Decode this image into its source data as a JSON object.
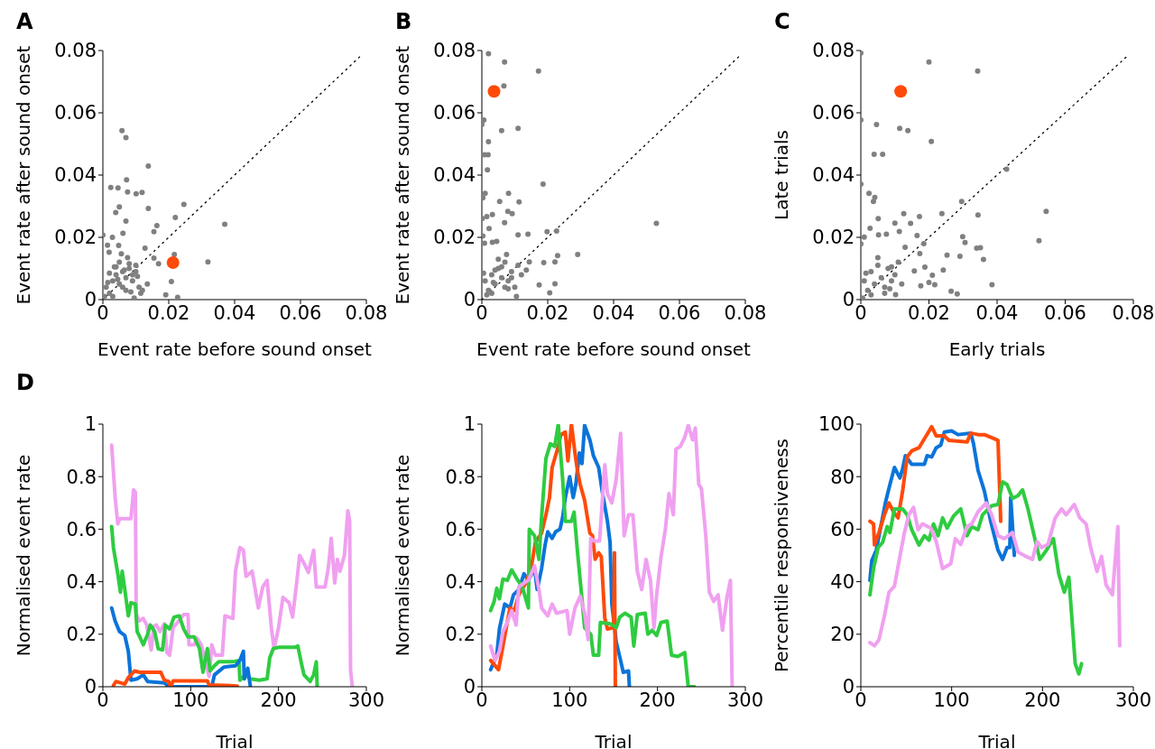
{
  "chart_data": [
    {
      "type": "scatter",
      "title": "A",
      "xlabel": "Event rate before sound onset",
      "ylabel": "Event rate after sound onset",
      "xlim": [
        0,
        0.08
      ],
      "ylim": [
        0,
        0.08
      ],
      "xticks": [
        0,
        0.02,
        0.04,
        0.06,
        0.08
      ],
      "yticks": [
        0,
        0.02,
        0.04,
        0.06,
        0.08
      ],
      "series": [
        {
          "color": "#808080",
          "x": [
            0.0058,
            0.007,
            0.0138,
            0.0072,
            0.0024,
            0.0046,
            0.0075,
            0.0101,
            0.0119,
            0.005,
            0.0039,
            0.0138,
            0.0246,
            0.007,
            0.022,
            0.037,
            0.0164,
            0.0155,
            0.0061,
            0,
            0.0029,
            0.0014,
            0.0048,
            0.0128,
            0.0019,
            0.0056,
            0.0217,
            0.0319,
            0.0155,
            0.0169,
            0.0208,
            0.0227,
            0.0191,
            0.001,
            0.002,
            0.003,
            0.004,
            0.005,
            0.006,
            0.007,
            0.008,
            0.009,
            0.01,
            0.011,
            0.012,
            0.003,
            0.005,
            0.007,
            0.009,
            0.004,
            0.006,
            0.008,
            0.01,
            0.002,
            0.0045,
            0.0065,
            0.0085,
            0.0005,
            0.0015,
            0.0105,
            0.0135,
            0.0115,
            0.0035,
            0.0075,
            0.0095
          ],
          "values": [
            0.0543,
            0.052,
            0.0429,
            0.0385,
            0.036,
            0.0359,
            0.0346,
            0.034,
            0.0344,
            0.0298,
            0.028,
            0.0293,
            0.0306,
            0.0252,
            0.0264,
            0.0242,
            0.0238,
            0.0218,
            0.0213,
            0.0207,
            0.02,
            0.0175,
            0.0174,
            0.0165,
            0.0152,
            0.0147,
            0.0145,
            0.0121,
            0.0133,
            0.0115,
            0.0058,
            0.0007,
            0.0015,
            0.004,
            0.002,
            0.006,
            0.008,
            0.005,
            0.009,
            0.007,
            0.01,
            0.006,
            0.011,
            0.004,
            0.003,
            0.001,
            0.012,
            0.003,
            0.008,
            0.0105,
            0.004,
            0.0115,
            0.009,
            0.0085,
            0.0065,
            0.0095,
            0.0025,
            0.001,
            0.0055,
            0.0075,
            0.005,
            0.002,
            0.0105,
            0.0135,
            0.0005
          ]
        },
        {
          "color": "#ff4a0a",
          "x": [
            0.0213
          ],
          "values": [
            0.0119
          ]
        },
        {
          "type": "line",
          "color": "#000000",
          "line_style": "dotted",
          "x": [
            0,
            0.078
          ],
          "values": [
            0,
            0.078
          ]
        }
      ]
    },
    {
      "type": "scatter",
      "title": "B",
      "xlabel": "Event rate before sound onset",
      "ylabel": "Event rate after sound onset",
      "xlim": [
        0,
        0.08
      ],
      "ylim": [
        0,
        0.08
      ],
      "xticks": [
        0,
        0.02,
        0.04,
        0.06,
        0.08
      ],
      "yticks": [
        0,
        0.02,
        0.04,
        0.06,
        0.08
      ],
      "series": [
        {
          "color": "#808080",
          "x": [
            0.002,
            0.0069,
            0.0172,
            0.0067,
            0.0006,
            0,
            0.006,
            0.011,
            0.002,
            0.0008,
            0.0019,
            0.0017,
            0.0186,
            0.001,
            0.0081,
            0.0003,
            0.0054,
            0.0113,
            0.0032,
            0.0079,
            0.0092,
            0.0015,
            0.0001,
            0.0069,
            0.0022,
            0.053,
            0.0198,
            0.0227,
            0.014,
            0.011,
            0.0003,
            0.0008,
            0.0032,
            0.0045,
            0.0291,
            0.023,
            0.0222,
            0.0188,
            0.0144,
            0.0174,
            0.0222,
            0.0206,
            0.0105,
            0.001,
            0.002,
            0.003,
            0.004,
            0.005,
            0.006,
            0.007,
            0.008,
            0.009,
            0.01,
            0.011,
            0.012,
            0.003,
            0.005,
            0.007,
            0.009,
            0.004,
            0.006,
            0.008,
            0.0005,
            0.0015,
            0.0135,
            0.0035,
            0.0075
          ],
          "values": [
            0.079,
            0.0763,
            0.0734,
            0.0686,
            0.0577,
            0.0562,
            0.0543,
            0.055,
            0.0507,
            0.0465,
            0.0465,
            0.0417,
            0.0371,
            0.0341,
            0.0341,
            0.0327,
            0.0315,
            0.0314,
            0.0273,
            0.0283,
            0.0276,
            0.0267,
            0.026,
            0.0247,
            0.0228,
            0.0245,
            0.0218,
            0.022,
            0.021,
            0.0208,
            0.0204,
            0.0181,
            0.0184,
            0.0187,
            0.0145,
            0.0141,
            0.0121,
            0.0119,
            0.0121,
            0.0047,
            0.0051,
            0.0022,
            0.001,
            0.006,
            0.003,
            0.008,
            0.005,
            0.01,
            0.007,
            0.012,
            0.006,
            0.009,
            0.004,
            0.011,
            0.008,
            0.002,
            0.013,
            0.004,
            0.007,
            0.0095,
            0.0105,
            0.0035,
            0.0085,
            0.0015,
            0.0095,
            0.0055,
            0.0145
          ]
        },
        {
          "color": "#ff4a0a",
          "x": [
            0.0037
          ],
          "values": [
            0.0669
          ]
        },
        {
          "type": "line",
          "color": "#000000",
          "line_style": "dotted",
          "x": [
            0,
            0.078
          ],
          "values": [
            0,
            0.078
          ]
        }
      ]
    },
    {
      "type": "scatter",
      "title": "C",
      "xlabel": "Early trials",
      "ylabel": "Late trials",
      "xlim": [
        0,
        0.08
      ],
      "ylim": [
        0,
        0.08
      ],
      "xticks": [
        0,
        0.02,
        0.04,
        0.06,
        0.08
      ],
      "yticks": [
        0,
        0.02,
        0.04,
        0.06,
        0.08
      ],
      "series": [
        {
          "color": "#808080",
          "x": [
            0,
            0.02,
            0.0343,
            0,
            0.0046,
            0.0114,
            0.0138,
            0.0207,
            0.0039,
            0.0064,
            0.0428,
            0,
            0.0024,
            0.0041,
            0.0037,
            0.0296,
            0.0544,
            0.0126,
            0.0238,
            0.0344,
            0.0172,
            0.0051,
            0.01,
            0.0146,
            0.0027,
            0.0113,
            0.0075,
            0.0052,
            0.0165,
            0.0299,
            0.001,
            0.0523,
            0.0306,
            0.0185,
            0,
            0.013,
            0.034,
            0.0351,
            0.0253,
            0.0291,
            0.036,
            0.0173,
            0.0188,
            0.0242,
            0.0157,
            0.021,
            0.02,
            0.0217,
            0.0176,
            0.0385,
            0.0265,
            0.0283,
            0.0102,
            0.001,
            0.002,
            0.003,
            0.004,
            0.005,
            0.006,
            0.007,
            0.008,
            0.009,
            0.01,
            0.011,
            0.012,
            0.003,
            0.005,
            0.007,
            0.009,
            0.0005,
            0.0015,
            0.0085
          ],
          "values": [
            0.0792,
            0.0763,
            0.0734,
            0.0577,
            0.0562,
            0.055,
            0.0543,
            0.0508,
            0.0467,
            0.0467,
            0.0419,
            0.0371,
            0.0341,
            0.0328,
            0.0315,
            0.0315,
            0.0283,
            0.0276,
            0.0276,
            0.0272,
            0.0267,
            0.026,
            0.0246,
            0.0245,
            0.0229,
            0.0219,
            0.021,
            0.0208,
            0.0206,
            0.0202,
            0.0201,
            0.0189,
            0.0183,
            0.018,
            0.0179,
            0.0168,
            0.0165,
            0.0167,
            0.0143,
            0.0139,
            0.0129,
            0.0148,
            0.0104,
            0.0095,
            0.0092,
            0.0078,
            0.0055,
            0.0048,
            0.0044,
            0.0048,
            0.0027,
            0.0018,
            0.0016,
            0.006,
            0.003,
            0.009,
            0.005,
            0.011,
            0.007,
            0.004,
            0.01,
            0.006,
            0.008,
            0.012,
            0.005,
            0.0015,
            0.0135,
            0.002,
            0.0105,
            0.0005,
            0.0085,
            0.0035
          ]
        },
        {
          "color": "#ff4a0a",
          "x": [
            0.0117
          ],
          "values": [
            0.0669
          ]
        },
        {
          "type": "line",
          "color": "#000000",
          "line_style": "dotted",
          "x": [
            0,
            0.078
          ],
          "values": [
            0,
            0.078
          ]
        }
      ]
    },
    {
      "type": "line",
      "title": "D",
      "xlabel": "Trial",
      "ylabel": "Normalised event rate",
      "xlim": [
        0,
        300
      ],
      "ylim": [
        0,
        1
      ],
      "xticks": [
        0,
        100,
        200,
        300
      ],
      "yticks": [
        0,
        0.2,
        0.4,
        0.6,
        0.8,
        1
      ],
      "series": [
        {
          "color": "#f0a0f0",
          "x": [
            10,
            14,
            17,
            19,
            32,
            35,
            37,
            38,
            41,
            46,
            50,
            55,
            58,
            61,
            65,
            70,
            73,
            76,
            80,
            85,
            92,
            97,
            98,
            104,
            107,
            112,
            117,
            121,
            124,
            128,
            131,
            136,
            139,
            148,
            151,
            156,
            160,
            163,
            170,
            177,
            182,
            187,
            192,
            195,
            200,
            205,
            212,
            216,
            221,
            224,
            229,
            234,
            240,
            243,
            253,
            257,
            260,
            264,
            267,
            270,
            275,
            279,
            281,
            282,
            284
          ],
          "values": [
            0.92,
            0.72,
            0.62,
            0.64,
            0.64,
            0.75,
            0.74,
            0.28,
            0.25,
            0.26,
            0.235,
            0.14,
            0.23,
            0.235,
            0.21,
            0.24,
            0.13,
            0.12,
            0.225,
            0.245,
            0.275,
            0.275,
            0.16,
            0.16,
            0.185,
            0.16,
            0.09,
            0.04,
            0.16,
            0.12,
            0.12,
            0.12,
            0.27,
            0.26,
            0.44,
            0.53,
            0.52,
            0.42,
            0.44,
            0.3,
            0.38,
            0.405,
            0.22,
            0.145,
            0.225,
            0.34,
            0.32,
            0.265,
            0.405,
            0.5,
            0.47,
            0.435,
            0.52,
            0.38,
            0.38,
            0.46,
            0.565,
            0.395,
            0.485,
            0.44,
            0.5,
            0.67,
            0.63,
            0.065,
            0
          ]
        },
        {
          "color": "#2ecc40",
          "x": [
            10,
            12,
            17,
            20,
            22,
            25,
            29,
            32,
            37,
            39,
            42,
            46,
            51,
            54,
            59,
            63,
            68,
            71,
            76,
            81,
            87,
            92,
            97,
            104,
            110,
            114,
            119,
            122,
            127,
            132,
            148,
            155,
            156,
            162,
            168,
            178,
            187,
            190,
            194,
            200,
            219,
            222,
            226,
            229,
            236,
            240,
            243,
            244
          ],
          "values": [
            0.61,
            0.53,
            0.43,
            0.36,
            0.44,
            0.37,
            0.27,
            0.32,
            0.315,
            0.21,
            0.19,
            0.16,
            0.2,
            0.235,
            0.21,
            0.145,
            0.14,
            0.235,
            0.22,
            0.265,
            0.27,
            0.22,
            0.19,
            0.19,
            0.145,
            0.055,
            0.145,
            0.06,
            0.08,
            0.095,
            0.095,
            0.1,
            0.025,
            0.045,
            0.03,
            0.025,
            0.03,
            0.11,
            0.145,
            0.15,
            0.15,
            0.155,
            0.09,
            0.045,
            0.02,
            0.045,
            0.095,
            0
          ]
        },
        {
          "color": "#0a74da",
          "x": [
            10,
            14,
            19,
            25,
            29,
            32,
            39,
            46,
            51,
            70,
            75,
            124,
            127,
            138,
            151,
            156,
            160,
            161,
            165,
            168
          ],
          "values": [
            0.3,
            0.25,
            0.21,
            0.195,
            0.135,
            0.025,
            0.03,
            0.045,
            0.02,
            0.015,
            0,
            0,
            0.045,
            0.075,
            0.08,
            0.1,
            0.135,
            0.03,
            0.07,
            0
          ]
        },
        {
          "color": "#ff4a0a",
          "x": [
            12,
            15,
            25,
            29,
            36,
            42,
            49,
            66,
            70,
            75,
            77,
            80,
            119,
            121,
            153
          ],
          "values": [
            0.005,
            0.02,
            0.01,
            0.035,
            0.06,
            0.055,
            0.055,
            0.055,
            0.025,
            0.02,
            0,
            0.022,
            0.022,
            0.007,
            0.003
          ]
        }
      ]
    },
    {
      "type": "line",
      "xlabel": "Trial",
      "ylabel": "Normalised event rate",
      "xlim": [
        0,
        300
      ],
      "ylim": [
        0,
        1
      ],
      "xticks": [
        0,
        100,
        200,
        300
      ],
      "yticks": [
        0,
        0.2,
        0.4,
        0.6,
        0.8,
        1
      ],
      "series": [
        {
          "color": "#0a74da",
          "x": [
            10,
            17,
            20,
            26,
            32,
            36,
            42,
            48,
            53,
            60,
            63,
            68,
            72,
            75,
            80,
            84,
            89,
            92,
            95,
            100,
            104,
            107,
            111,
            114,
            117,
            123,
            127,
            133,
            137,
            143,
            146,
            148,
            153,
            158,
            161,
            167,
            168
          ],
          "values": [
            0.065,
            0.12,
            0.22,
            0.315,
            0.3,
            0.35,
            0.37,
            0.43,
            0.405,
            0.45,
            0.37,
            0.45,
            0.54,
            0.59,
            0.565,
            0.59,
            0.6,
            0.645,
            0.72,
            0.8,
            0.72,
            0.77,
            0.89,
            0.85,
            0.995,
            0.94,
            0.88,
            0.835,
            0.745,
            0.63,
            0.55,
            0.315,
            0.17,
            0.1,
            0.055,
            0.06,
            0
          ]
        },
        {
          "color": "#ff4a0a",
          "x": [
            10,
            19,
            23,
            27,
            32,
            37,
            42,
            50,
            56,
            61,
            68,
            73,
            77,
            80,
            87,
            90,
            95,
            98,
            102,
            106,
            109,
            112,
            117,
            123,
            126,
            129,
            133,
            136,
            140,
            143,
            150,
            151,
            152
          ],
          "values": [
            0.1,
            0.065,
            0.135,
            0.21,
            0.3,
            0.29,
            0.35,
            0.395,
            0.45,
            0.55,
            0.585,
            0.655,
            0.72,
            0.835,
            0.915,
            0.96,
            0.97,
            0.86,
            1,
            0.89,
            0.82,
            0.77,
            0.71,
            0.585,
            0.575,
            0.485,
            0.51,
            0.495,
            0.26,
            0.22,
            0.225,
            0.51,
            0
          ]
        },
        {
          "color": "#2ecc40",
          "x": [
            10,
            14,
            17,
            20,
            24,
            29,
            34,
            41,
            46,
            53,
            54,
            60,
            65,
            68,
            73,
            78,
            83,
            87,
            92,
            95,
            102,
            105,
            109,
            114,
            117,
            124,
            127,
            133,
            135,
            146,
            153,
            157,
            163,
            170,
            173,
            177,
            186,
            189,
            194,
            199,
            204,
            211,
            216,
            223,
            231,
            235,
            242
          ],
          "values": [
            0.29,
            0.325,
            0.375,
            0.335,
            0.41,
            0.405,
            0.445,
            0.405,
            0.38,
            0.3,
            0.6,
            0.575,
            0.485,
            0.645,
            0.87,
            0.925,
            0.915,
            1,
            0.79,
            0.63,
            0.63,
            0.665,
            0.51,
            0.335,
            0.225,
            0.2,
            0.12,
            0.12,
            0.245,
            0.24,
            0.225,
            0.265,
            0.28,
            0.265,
            0.155,
            0.275,
            0.28,
            0.2,
            0.215,
            0.195,
            0.245,
            0.25,
            0.12,
            0.115,
            0.13,
            0,
            0
          ]
        },
        {
          "color": "#f0a0f0",
          "x": [
            10,
            15,
            20,
            24,
            29,
            34,
            39,
            42,
            48,
            53,
            60,
            65,
            68,
            75,
            80,
            85,
            97,
            100,
            106,
            112,
            117,
            121,
            124,
            128,
            134,
            140,
            143,
            148,
            153,
            158,
            162,
            167,
            172,
            177,
            182,
            187,
            192,
            196,
            199,
            204,
            209,
            213,
            218,
            221,
            226,
            231,
            235,
            240,
            243,
            247,
            250,
            255,
            259,
            264,
            269,
            274,
            279,
            283,
            285
          ],
          "values": [
            0.155,
            0.1,
            0.135,
            0.21,
            0.245,
            0.29,
            0.235,
            0.38,
            0.395,
            0.405,
            0.46,
            0.37,
            0.3,
            0.27,
            0.315,
            0.28,
            0.29,
            0.2,
            0.3,
            0.345,
            0.28,
            0.18,
            0.565,
            0.555,
            0.555,
            0.845,
            0.735,
            0.7,
            0.79,
            0.965,
            0.575,
            0.655,
            0.655,
            0.44,
            0.37,
            0.485,
            0.405,
            0.225,
            0.35,
            0.495,
            0.6,
            0.735,
            0.655,
            0.905,
            0.915,
            0.95,
            0.995,
            0.94,
            0.985,
            0.77,
            0.755,
            0.575,
            0.36,
            0.325,
            0.35,
            0.215,
            0.34,
            0.405,
            0
          ]
        }
      ]
    },
    {
      "type": "line",
      "xlabel": "Trial",
      "ylabel": "Percentile responsiveness",
      "xlim": [
        0,
        300
      ],
      "ylim": [
        0,
        100
      ],
      "xticks": [
        0,
        100,
        200,
        300
      ],
      "yticks": [
        0,
        20,
        40,
        60,
        80,
        100
      ],
      "series": [
        {
          "color": "#0a74da",
          "x": [
            10,
            12,
            17,
            22,
            27,
            32,
            37,
            43,
            46,
            49,
            56,
            70,
            73,
            78,
            83,
            88,
            92,
            100,
            107,
            121,
            124,
            129,
            136,
            143,
            151,
            156,
            161,
            164,
            165,
            169
          ],
          "values": [
            40.5,
            48,
            52,
            61,
            70,
            77,
            83.5,
            79.5,
            83,
            88,
            84.7,
            84.7,
            88,
            87.5,
            91,
            92,
            97,
            97.4,
            96,
            96.6,
            92.6,
            82.4,
            74.5,
            63,
            52,
            48.5,
            53,
            53,
            72,
            50
          ]
        },
        {
          "color": "#ff4a0a",
          "x": [
            10,
            14,
            15,
            20,
            26,
            31,
            36,
            41,
            46,
            51,
            56,
            64,
            71,
            78,
            83,
            92,
            97,
            117,
            121,
            129,
            136,
            148,
            151,
            154
          ],
          "values": [
            63,
            62,
            54,
            58.7,
            65.5,
            70,
            66.6,
            64.3,
            74.5,
            87.5,
            89.8,
            91,
            95,
            99,
            95.5,
            95.5,
            93.8,
            93.2,
            96.6,
            96,
            96,
            94.3,
            93.8,
            63
          ]
        },
        {
          "color": "#2ecc40",
          "x": [
            10,
            14,
            19,
            24,
            29,
            32,
            37,
            46,
            51,
            56,
            64,
            70,
            75,
            80,
            85,
            90,
            95,
            102,
            110,
            117,
            122,
            129,
            134,
            144,
            151,
            156,
            161,
            167,
            173,
            178,
            184,
            190,
            197,
            204,
            212,
            218,
            224,
            229,
            236,
            240,
            243
          ],
          "values": [
            35,
            45,
            53,
            55,
            61,
            58.7,
            67.7,
            67.7,
            65.5,
            59.8,
            54,
            57.5,
            55.8,
            62,
            57.5,
            64.3,
            60.4,
            65,
            67.7,
            57.5,
            61,
            59.8,
            65.5,
            68.9,
            69.4,
            78,
            77,
            71.7,
            72.8,
            75,
            67.7,
            58.7,
            48.5,
            51.8,
            56.4,
            42.8,
            36,
            41.7,
            8.8,
            4.9,
            8.8
          ]
        },
        {
          "color": "#f0a0f0",
          "x": [
            10,
            15,
            20,
            26,
            31,
            37,
            43,
            48,
            53,
            58,
            63,
            68,
            77,
            83,
            90,
            99,
            104,
            110,
            117,
            122,
            129,
            138,
            144,
            151,
            158,
            167,
            173,
            182,
            189,
            194,
            199,
            206,
            214,
            221,
            226,
            235,
            241,
            248,
            253,
            260,
            265,
            270,
            277,
            283,
            285
          ],
          "values": [
            16.8,
            15.6,
            17.9,
            27,
            36,
            38.3,
            49.6,
            58.7,
            65.5,
            68.3,
            59.8,
            62,
            60.4,
            55.3,
            45,
            46.8,
            56.4,
            54.2,
            61,
            62,
            66.6,
            70,
            65.5,
            57.5,
            56.4,
            58.7,
            51.3,
            49.6,
            48.5,
            55.3,
            53,
            54.2,
            64.3,
            67.7,
            65.5,
            69.4,
            64.3,
            62,
            53,
            43.9,
            49.6,
            38.8,
            35,
            61,
            15.6
          ]
        }
      ]
    }
  ]
}
